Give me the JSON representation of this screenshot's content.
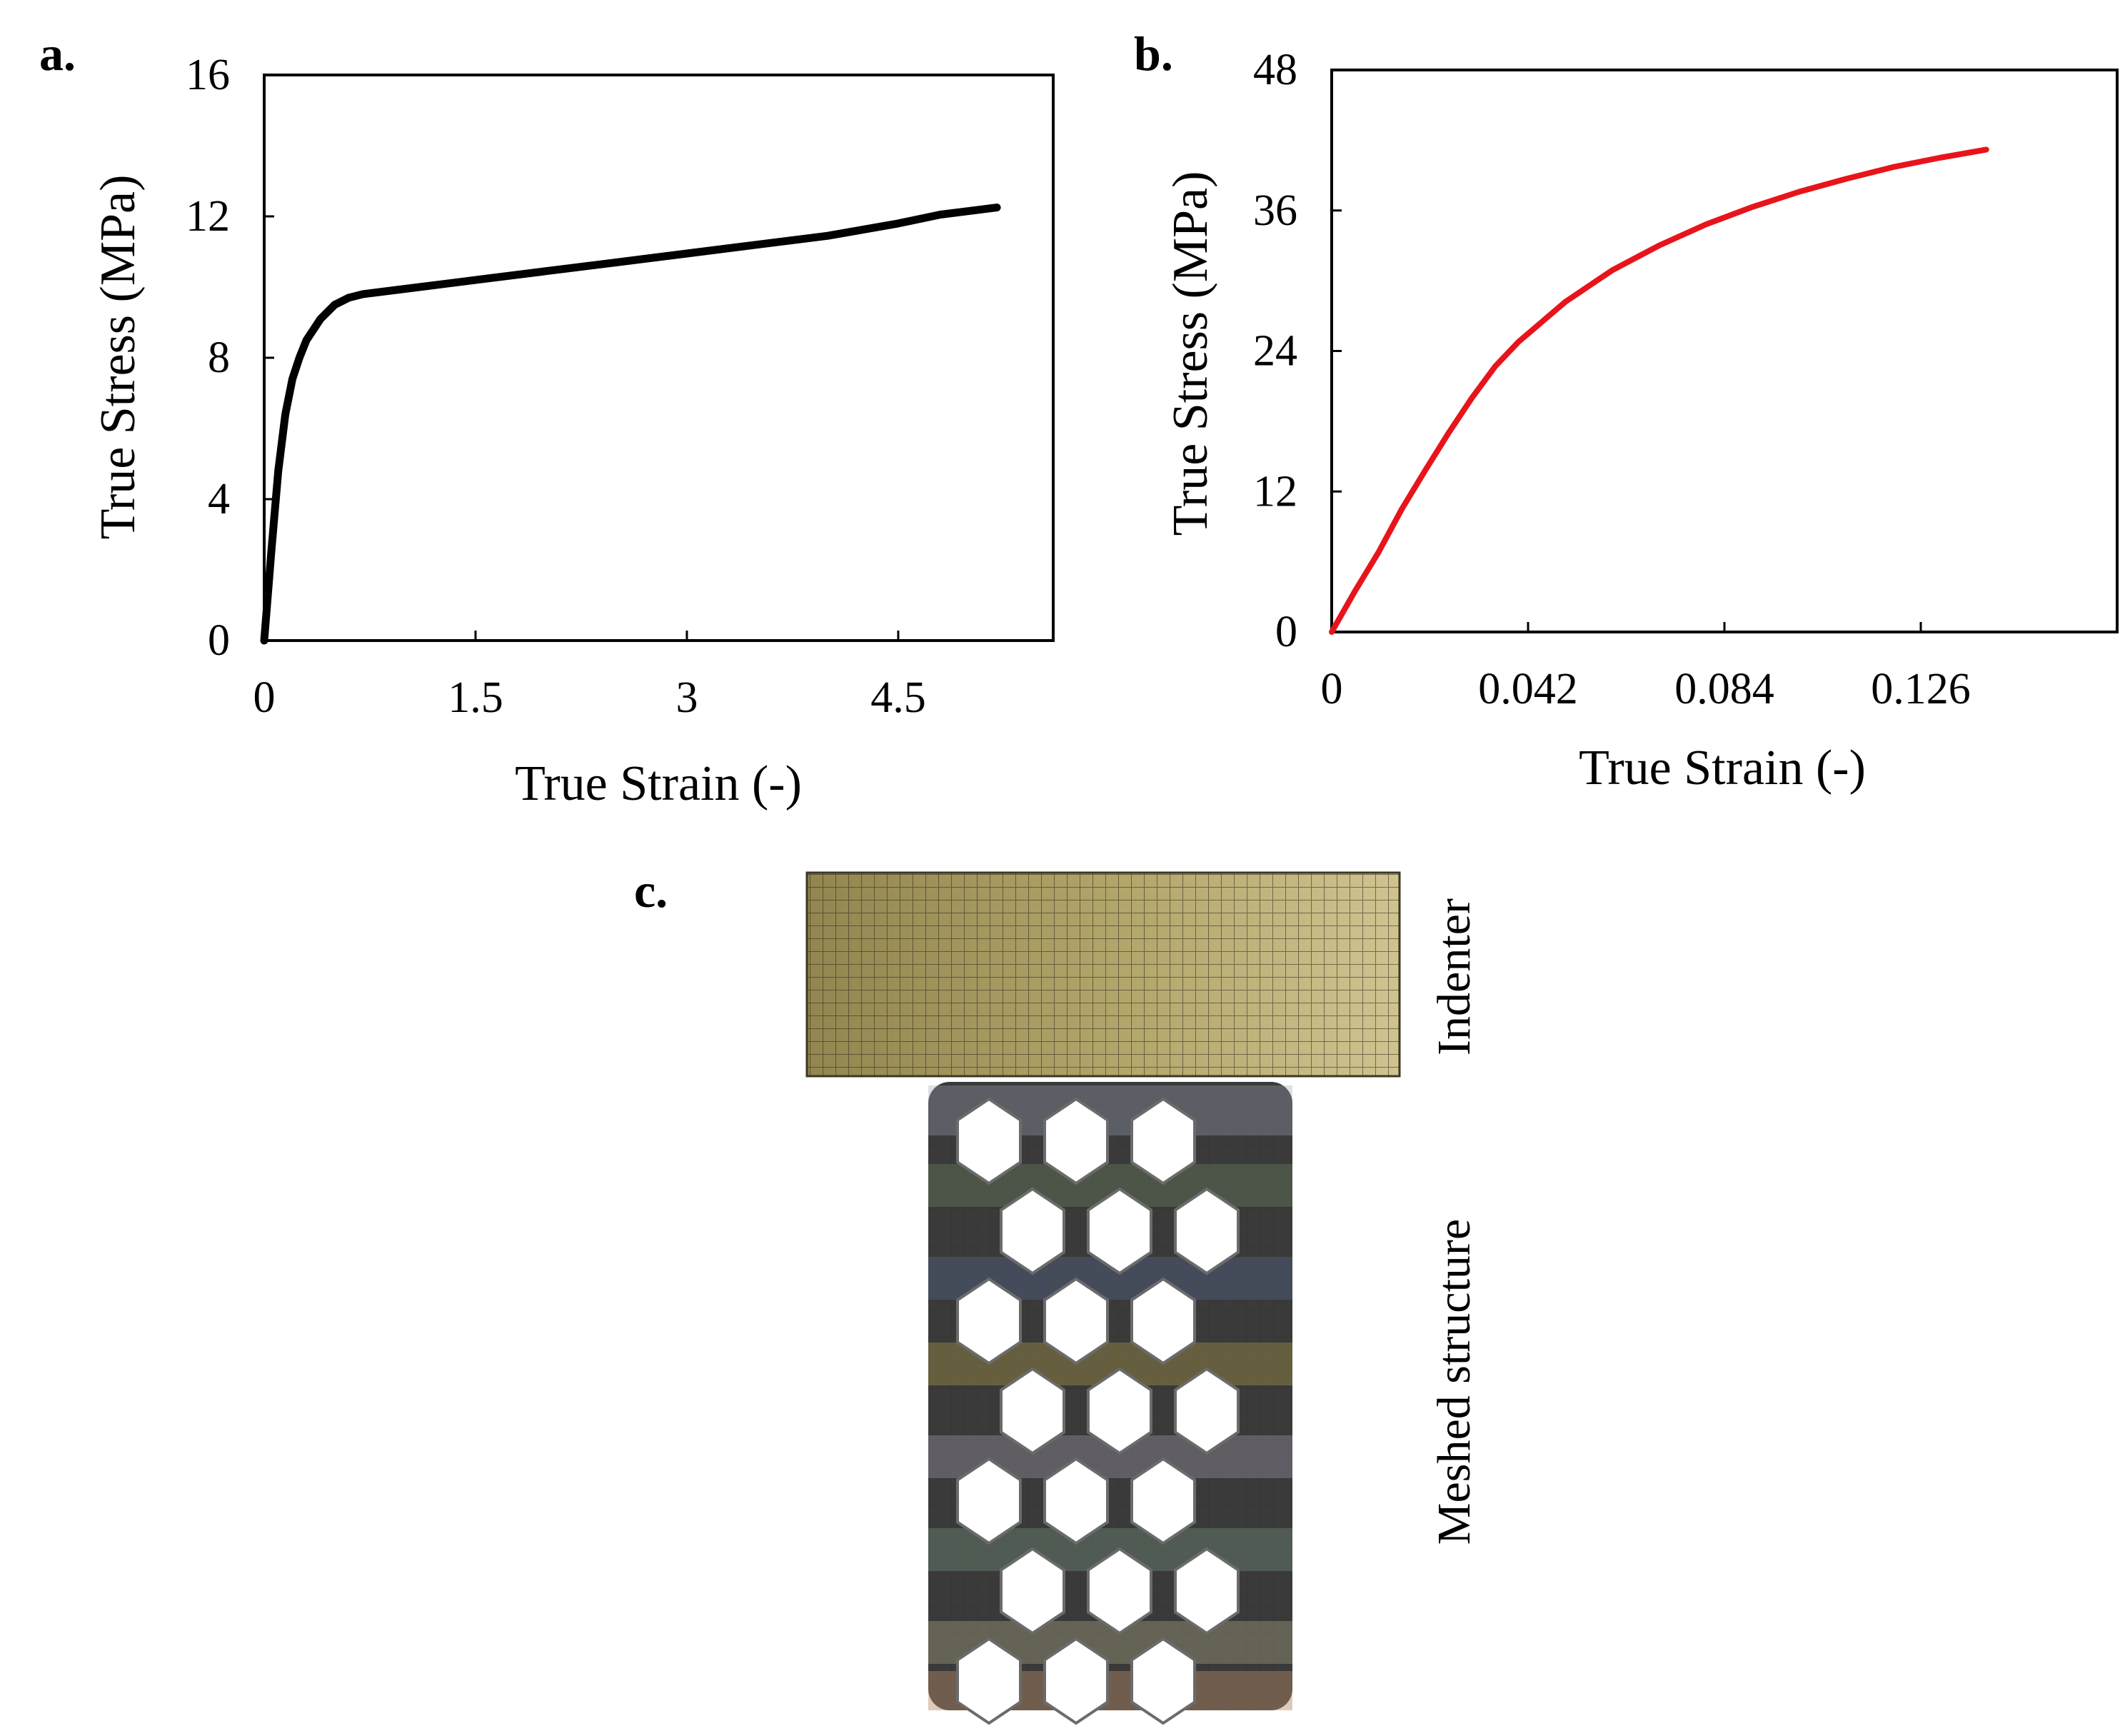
{
  "chart_data": [
    {
      "panel_label": "a.",
      "type": "line",
      "xlabel": "True Strain (-)",
      "ylabel": "True Stress (MPa)",
      "xlim": [
        0,
        5.6
      ],
      "ylim": [
        0,
        16
      ],
      "x_ticks": [
        "0",
        "1.5",
        "3",
        "4.5"
      ],
      "x_tick_values": [
        0,
        1.5,
        3,
        4.5
      ],
      "y_ticks": [
        "0",
        "4",
        "8",
        "12",
        "16"
      ],
      "y_tick_values": [
        0,
        4,
        8,
        12,
        16
      ],
      "grid": false,
      "series": [
        {
          "color": "#000000",
          "x": [
            0,
            0.05,
            0.1,
            0.15,
            0.2,
            0.25,
            0.3,
            0.4,
            0.5,
            0.6,
            0.7,
            1.0,
            1.5,
            2.0,
            2.5,
            3.0,
            3.5,
            4.0,
            4.5,
            4.8,
            5.0,
            5.2
          ],
          "y": [
            0,
            2.5,
            4.8,
            6.4,
            7.4,
            8.0,
            8.5,
            9.1,
            9.5,
            9.7,
            9.8,
            9.95,
            10.2,
            10.45,
            10.7,
            10.95,
            11.2,
            11.45,
            11.8,
            12.05,
            12.15,
            12.25
          ]
        }
      ]
    },
    {
      "panel_label": "b.",
      "type": "line",
      "xlabel": "True Strain (-)",
      "ylabel": "True Stress (MPa)",
      "xlim": [
        0,
        0.168
      ],
      "ylim": [
        0,
        48
      ],
      "x_ticks": [
        "0",
        "0.042",
        "0.084",
        "0.126"
      ],
      "x_tick_values": [
        0,
        0.042,
        0.084,
        0.126
      ],
      "y_ticks": [
        "0",
        "12",
        "24",
        "36",
        "48"
      ],
      "y_tick_values": [
        0,
        12,
        24,
        36,
        48
      ],
      "grid": false,
      "series": [
        {
          "color": "#e8141b",
          "x": [
            0,
            0.005,
            0.01,
            0.015,
            0.02,
            0.025,
            0.03,
            0.035,
            0.04,
            0.05,
            0.06,
            0.07,
            0.08,
            0.09,
            0.1,
            0.11,
            0.12,
            0.13,
            0.14
          ],
          "y": [
            0,
            3.5,
            6.8,
            10.5,
            13.8,
            17.0,
            20.0,
            22.7,
            24.8,
            28.2,
            30.9,
            33.0,
            34.8,
            36.3,
            37.6,
            38.7,
            39.7,
            40.5,
            41.2
          ]
        }
      ]
    }
  ],
  "panel_c": {
    "panel_label": "c.",
    "indenter_label": "Indenter",
    "structure_label": "Meshed structure",
    "indenter_color": "#a99d5f",
    "structure_color": "#3a3a3a"
  }
}
